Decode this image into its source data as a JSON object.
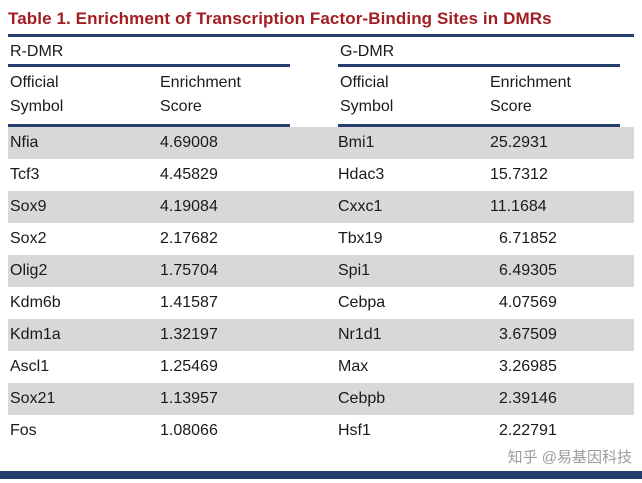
{
  "colors": {
    "title_red": "#a11e23",
    "rule_navy": "#243d6e",
    "row_shade": "#d8d8d8",
    "watermark_gray": "#9b9b9b"
  },
  "table": {
    "title": "Table 1.  Enrichment of Transcription Factor-Binding Sites in DMRs",
    "groups": [
      {
        "label": "R-DMR",
        "columns": [
          "Official Symbol",
          "Enrichment Score"
        ]
      },
      {
        "label": "G-DMR",
        "columns": [
          "Official Symbol",
          "Enrichment Score"
        ]
      }
    ],
    "rows": [
      {
        "r_symbol": "Nfia",
        "r_score": "4.69008",
        "g_symbol": "Bmi1",
        "g_score": "25.2931"
      },
      {
        "r_symbol": "Tcf3",
        "r_score": "4.45829",
        "g_symbol": "Hdac3",
        "g_score": "15.7312"
      },
      {
        "r_symbol": "Sox9",
        "r_score": "4.19084",
        "g_symbol": "Cxxc1",
        "g_score": "11.1684"
      },
      {
        "r_symbol": "Sox2",
        "r_score": "2.17682",
        "g_symbol": "Tbx19",
        "g_score": "6.71852"
      },
      {
        "r_symbol": "Olig2",
        "r_score": "1.75704",
        "g_symbol": "Spi1",
        "g_score": "6.49305"
      },
      {
        "r_symbol": "Kdm6b",
        "r_score": "1.41587",
        "g_symbol": "Cebpa",
        "g_score": "4.07569"
      },
      {
        "r_symbol": "Kdm1a",
        "r_score": "1.32197",
        "g_symbol": "Nr1d1",
        "g_score": "3.67509"
      },
      {
        "r_symbol": "Ascl1",
        "r_score": "1.25469",
        "g_symbol": "Max",
        "g_score": "3.26985"
      },
      {
        "r_symbol": "Sox21",
        "r_score": "1.13957",
        "g_symbol": "Cebpb",
        "g_score": "2.39146"
      },
      {
        "r_symbol": "Fos",
        "r_score": "1.08066",
        "g_symbol": "Hsf1",
        "g_score": "2.22791"
      }
    ]
  },
  "watermark": {
    "text": "知乎 @易基因科技"
  }
}
